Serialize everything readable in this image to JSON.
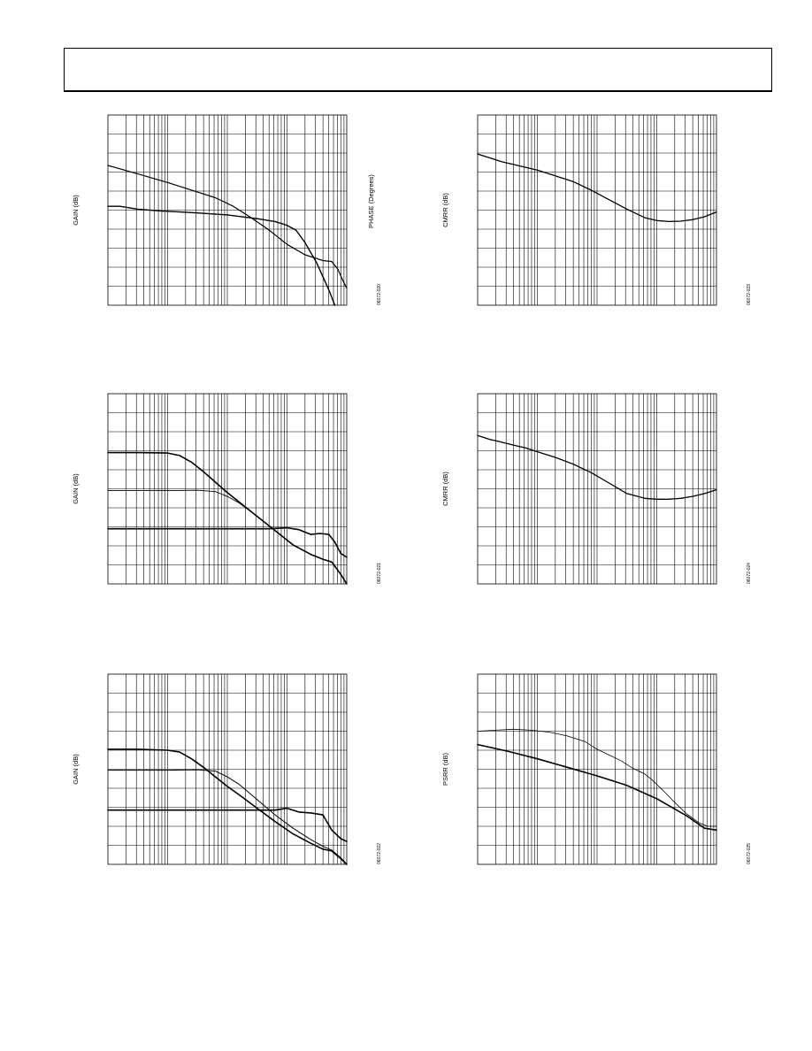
{
  "page": {
    "header_title": ""
  },
  "chart_data": [
    {
      "id": "gain-phase",
      "type": "line",
      "title": "",
      "ylabel": "GAIN (dB)",
      "y2label": "PHASE (Degrees)",
      "figure_id": "06072-020",
      "x_scale": "log",
      "x_decades": [
        0,
        4
      ],
      "x_domain": [
        0.0,
        4.0
      ],
      "y_domain": [
        0,
        10
      ],
      "y_divisions": 10,
      "grid": true,
      "series": [
        {
          "color": "#000000",
          "width": 1.2,
          "x": [
            0.0,
            0.5,
            1.0,
            1.5,
            1.8,
            2.1,
            2.4,
            2.7,
            3.0,
            3.3,
            3.5,
            3.6,
            3.75,
            3.85,
            3.95,
            4.0
          ],
          "y": [
            7.35,
            6.9,
            6.45,
            5.95,
            5.65,
            5.2,
            4.6,
            3.95,
            3.2,
            2.65,
            2.45,
            2.35,
            2.3,
            1.9,
            1.2,
            0.9
          ]
        },
        {
          "color": "#000000",
          "width": 1.4,
          "x": [
            0.0,
            0.2,
            0.5,
            0.9,
            1.2,
            1.5,
            2.0,
            2.5,
            2.8,
            3.0,
            3.15,
            3.3,
            3.5,
            3.7,
            3.8
          ],
          "y": [
            5.2,
            5.2,
            5.05,
            4.95,
            4.9,
            4.85,
            4.75,
            4.55,
            4.4,
            4.2,
            3.95,
            3.3,
            2.2,
            0.8,
            0.0
          ]
        }
      ]
    },
    {
      "id": "cmrr-1",
      "type": "line",
      "title": "",
      "ylabel": "CMRR (dB)",
      "figure_id": "06072-023",
      "x_scale": "log",
      "x_decades": [
        0,
        4
      ],
      "x_domain": [
        0.0,
        4.0
      ],
      "y_domain": [
        0,
        10
      ],
      "y_divisions": 10,
      "grid": true,
      "series": [
        {
          "color": "#000000",
          "width": 1.3,
          "x": [
            0.0,
            0.2,
            0.4,
            0.6,
            0.8,
            1.0,
            1.3,
            1.6,
            1.9,
            2.2,
            2.5,
            2.8,
            3.0,
            3.2,
            3.4,
            3.6,
            3.8,
            4.0
          ],
          "y": [
            7.95,
            7.75,
            7.55,
            7.4,
            7.25,
            7.1,
            6.8,
            6.5,
            6.05,
            5.55,
            5.05,
            4.6,
            4.45,
            4.4,
            4.42,
            4.5,
            4.65,
            4.9
          ]
        }
      ]
    },
    {
      "id": "gain-2",
      "type": "line",
      "title": "",
      "ylabel": "GAIN (dB)",
      "figure_id": "06072-021",
      "x_scale": "log",
      "x_decades": [
        0,
        4
      ],
      "x_domain": [
        0.0,
        4.0
      ],
      "y_domain": [
        0,
        10
      ],
      "y_divisions": 10,
      "grid": true,
      "series": [
        {
          "color": "#000000",
          "width": 1.6,
          "x": [
            0.0,
            0.5,
            1.0,
            1.2,
            1.4,
            1.6,
            1.8,
            2.0,
            2.2,
            2.5,
            2.8,
            3.1,
            3.4,
            3.6,
            3.75,
            3.9,
            4.0
          ],
          "y": [
            6.9,
            6.9,
            6.88,
            6.75,
            6.4,
            5.9,
            5.35,
            4.8,
            4.3,
            3.55,
            2.8,
            2.05,
            1.55,
            1.3,
            1.15,
            0.5,
            0.0
          ]
        },
        {
          "color": "#000000",
          "width": 0.9,
          "x": [
            0.0,
            1.0,
            1.5,
            1.8,
            2.0,
            2.2,
            2.5,
            2.8,
            3.1,
            3.4,
            3.6,
            3.75,
            3.9,
            4.0
          ],
          "y": [
            4.9,
            4.9,
            4.92,
            4.85,
            4.6,
            4.25,
            3.55,
            2.8,
            2.05,
            1.55,
            1.3,
            1.15,
            0.5,
            0.0
          ]
        },
        {
          "color": "#000000",
          "width": 1.6,
          "x": [
            0.0,
            1.0,
            2.0,
            2.7,
            3.0,
            3.2,
            3.4,
            3.55,
            3.7,
            3.8,
            3.9,
            4.0
          ],
          "y": [
            2.9,
            2.9,
            2.9,
            2.9,
            2.95,
            2.85,
            2.6,
            2.65,
            2.6,
            2.2,
            1.6,
            1.4
          ]
        }
      ]
    },
    {
      "id": "cmrr-2",
      "type": "line",
      "title": "",
      "ylabel": "CMRR (dB)",
      "figure_id": "06072-024",
      "x_scale": "log",
      "x_decades": [
        0,
        4
      ],
      "x_domain": [
        0.0,
        4.0
      ],
      "y_domain": [
        0,
        10
      ],
      "y_divisions": 10,
      "grid": true,
      "series": [
        {
          "color": "#000000",
          "width": 1.3,
          "x": [
            0.0,
            0.2,
            0.4,
            0.6,
            0.8,
            1.0,
            1.3,
            1.6,
            1.9,
            2.2,
            2.5,
            2.8,
            3.0,
            3.2,
            3.4,
            3.6,
            3.8,
            4.0
          ],
          "y": [
            7.8,
            7.6,
            7.45,
            7.3,
            7.15,
            6.95,
            6.65,
            6.3,
            5.85,
            5.3,
            4.75,
            4.5,
            4.45,
            4.45,
            4.5,
            4.6,
            4.75,
            4.95
          ]
        }
      ]
    },
    {
      "id": "gain-3",
      "type": "line",
      "title": "",
      "ylabel": "GAIN (dB)",
      "figure_id": "06072-022",
      "x_scale": "log",
      "x_decades": [
        0,
        4
      ],
      "x_domain": [
        0.0,
        4.0
      ],
      "y_domain": [
        0,
        10
      ],
      "y_divisions": 10,
      "grid": true,
      "series": [
        {
          "color": "#000000",
          "width": 1.6,
          "x": [
            0.0,
            0.5,
            1.0,
            1.2,
            1.4,
            1.6,
            1.8,
            2.0,
            2.2,
            2.5,
            2.8,
            3.1,
            3.4,
            3.6,
            3.75,
            3.9,
            4.0
          ],
          "y": [
            6.05,
            6.05,
            6.0,
            5.9,
            5.55,
            5.1,
            4.6,
            4.1,
            3.65,
            2.95,
            2.25,
            1.6,
            1.1,
            0.8,
            0.7,
            0.3,
            0.0
          ]
        },
        {
          "color": "#000000",
          "width": 1.0,
          "x": [
            0.0,
            1.0,
            1.5,
            1.8,
            2.0,
            2.2,
            2.5,
            2.8,
            3.1,
            3.4,
            3.6,
            3.75,
            3.9,
            4.0
          ],
          "y": [
            4.95,
            4.95,
            4.97,
            4.9,
            4.6,
            4.2,
            3.4,
            2.6,
            1.9,
            1.3,
            0.95,
            0.75,
            0.35,
            0.0
          ]
        },
        {
          "color": "#000000",
          "width": 1.6,
          "x": [
            0.0,
            1.0,
            2.0,
            2.8,
            3.0,
            3.2,
            3.4,
            3.6,
            3.75,
            3.9,
            4.0
          ],
          "y": [
            2.85,
            2.85,
            2.85,
            2.85,
            2.95,
            2.75,
            2.7,
            2.6,
            1.8,
            1.35,
            1.2
          ]
        }
      ]
    },
    {
      "id": "psrr",
      "type": "line",
      "title": "",
      "ylabel": "PSRR (dB)",
      "figure_id": "06072-025",
      "x_scale": "log",
      "x_decades": [
        0,
        4
      ],
      "x_domain": [
        0.0,
        4.0
      ],
      "y_domain": [
        0,
        10
      ],
      "y_divisions": 10,
      "grid": true,
      "series": [
        {
          "color": "#000000",
          "width": 0.8,
          "x": [
            0.0,
            0.3,
            0.6,
            0.9,
            1.2,
            1.5,
            1.8,
            2.0,
            2.2,
            2.4,
            2.6,
            2.8,
            2.9,
            3.1,
            3.3,
            3.5,
            3.7,
            3.85,
            4.0
          ],
          "y": [
            7.0,
            7.05,
            7.1,
            7.05,
            6.95,
            6.75,
            6.45,
            6.05,
            5.75,
            5.45,
            5.05,
            4.75,
            4.5,
            3.9,
            3.25,
            2.65,
            2.2,
            2.0,
            2.0
          ]
        },
        {
          "color": "#000000",
          "width": 1.6,
          "x": [
            0.0,
            0.5,
            1.0,
            1.5,
            2.0,
            2.5,
            3.0,
            3.5,
            3.8,
            4.0
          ],
          "y": [
            6.3,
            5.95,
            5.55,
            5.1,
            4.65,
            4.15,
            3.45,
            2.55,
            1.9,
            1.8
          ]
        }
      ]
    }
  ]
}
